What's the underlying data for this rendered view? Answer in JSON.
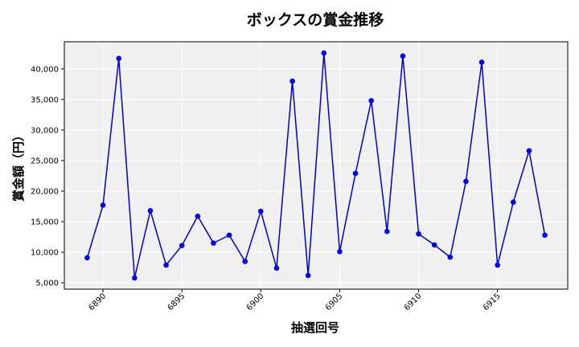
{
  "chart_data": {
    "type": "line",
    "title": "ボックスの賞金推移",
    "xlabel": "抽選回号",
    "ylabel": "賞金額（円）",
    "x": [
      6889,
      6890,
      6891,
      6892,
      6893,
      6894,
      6895,
      6896,
      6897,
      6898,
      6899,
      6900,
      6901,
      6902,
      6903,
      6904,
      6905,
      6906,
      6907,
      6908,
      6909,
      6910,
      6911,
      6912,
      6913,
      6914,
      6915,
      6916,
      6917,
      6918
    ],
    "series": [
      {
        "values": [
          9100,
          17700,
          41700,
          5800,
          16800,
          7900,
          11100,
          15900,
          11500,
          12800,
          8500,
          16700,
          7400,
          38000,
          6200,
          42600,
          10100,
          22900,
          34800,
          13400,
          42100,
          13000,
          11200,
          9200,
          21600,
          41100,
          7900,
          18200,
          26600,
          12800
        ]
      }
    ],
    "xticks": [
      6890,
      6895,
      6900,
      6905,
      6910,
      6915
    ],
    "xtick_labels": [
      "6890",
      "6895",
      "6900",
      "6905",
      "6910",
      "6915"
    ],
    "yticks": [
      5000,
      10000,
      15000,
      20000,
      25000,
      30000,
      35000,
      40000
    ],
    "ytick_labels": [
      "5,000",
      "10,000",
      "15,000",
      "20,000",
      "25,000",
      "30,000",
      "35,000",
      "40,000"
    ],
    "xlim": [
      6887.55,
      6919.45
    ],
    "ylim": [
      3960,
      44440
    ],
    "grid": true,
    "colors": {
      "line": "#0000cc",
      "marker": "#0000ee",
      "plot_bg": "#f0f0f0",
      "grid": "#ffffff"
    }
  }
}
